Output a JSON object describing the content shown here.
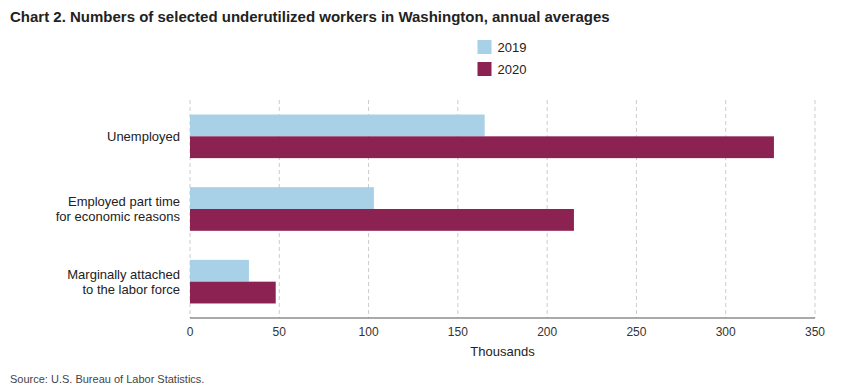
{
  "chart_data": {
    "type": "bar",
    "orientation": "horizontal",
    "title": "Chart 2. Numbers of selected underutilized workers in Washington, annual averages",
    "categories": [
      "Unemployed",
      "Employed part time\nfor economic reasons",
      "Marginally attached\nto the labor force"
    ],
    "series": [
      {
        "name": "2019",
        "color": "#a8d0e6",
        "values": [
          165,
          103,
          33
        ]
      },
      {
        "name": "2020",
        "color": "#8b2252",
        "values": [
          327,
          215,
          48
        ]
      }
    ],
    "xlabel": "Thousands",
    "xlim": [
      0,
      350
    ],
    "xticks": [
      0,
      50,
      100,
      150,
      200,
      250,
      300,
      350
    ],
    "grid": true,
    "legend": "top",
    "source": "Source: U.S. Bureau of Labor Statistics."
  }
}
